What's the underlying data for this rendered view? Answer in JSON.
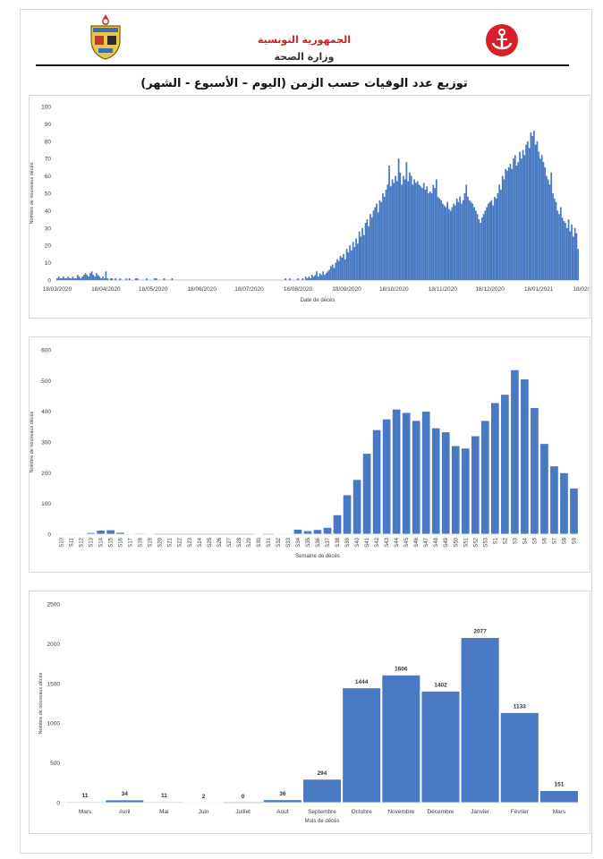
{
  "header": {
    "ministry_line1": "الجمهورية التونسية",
    "ministry_line2": "وزارة الصحة",
    "emblem_icon": "tunisia-coat-of-arms-icon",
    "logo_icon": "red-anchor-logo-icon",
    "title": "توزيع عدد الوفيات حسب الزمن (اليوم – الأسبوع - الشهر)"
  },
  "colors": {
    "bar": "#4a79c3",
    "axis": "#bfbfbf",
    "grid": "#e3e3e3",
    "text": "#404040"
  },
  "chart_data": [
    {
      "type": "bar",
      "subtype": "daily",
      "xlabel": "Date de décès",
      "ylabel": "Nombre de nouveaux décès",
      "ylim": [
        0,
        100
      ],
      "yticks": [
        0,
        10,
        20,
        30,
        40,
        50,
        60,
        70,
        80,
        90,
        100
      ],
      "xtick_labels": [
        "18/03/2020",
        "18/04/2020",
        "18/05/2020",
        "18/06/2020",
        "18/07/2020",
        "18/08/2020",
        "18/09/2020",
        "18/10/2020",
        "18/11/2020",
        "18/12/2020",
        "18/01/2021",
        "18/02/2021"
      ],
      "grid": false,
      "start_date": "2020-03-18",
      "values": [
        1,
        2,
        1,
        1,
        2,
        1,
        1,
        2,
        1,
        1,
        2,
        1,
        1,
        3,
        2,
        1,
        2,
        3,
        4,
        3,
        2,
        4,
        5,
        3,
        2,
        4,
        3,
        2,
        1,
        2,
        1,
        5,
        1,
        0,
        1,
        1,
        0,
        1,
        0,
        0,
        1,
        0,
        0,
        0,
        1,
        0,
        1,
        0,
        0,
        0,
        1,
        1,
        0,
        0,
        0,
        0,
        0,
        1,
        0,
        0,
        0,
        0,
        1,
        1,
        0,
        0,
        0,
        0,
        1,
        0,
        0,
        0,
        0,
        1,
        0,
        0,
        0,
        0,
        0,
        0,
        0,
        0,
        0,
        0,
        0,
        0,
        0,
        0,
        0,
        0,
        0,
        0,
        0,
        0,
        0,
        0,
        0,
        0,
        0,
        0,
        0,
        0,
        0,
        0,
        0,
        0,
        0,
        0,
        0,
        0,
        0,
        0,
        0,
        0,
        0,
        0,
        0,
        0,
        0,
        0,
        0,
        0,
        0,
        0,
        0,
        0,
        0,
        0,
        0,
        0,
        0,
        0,
        0,
        0,
        0,
        0,
        0,
        0,
        0,
        0,
        0,
        0,
        0,
        0,
        0,
        1,
        0,
        0,
        1,
        0,
        0,
        0,
        0,
        1,
        0,
        0,
        1,
        0,
        2,
        1,
        2,
        1,
        3,
        2,
        3,
        5,
        2,
        4,
        3,
        5,
        3,
        4,
        5,
        6,
        8,
        9,
        7,
        10,
        12,
        11,
        14,
        13,
        15,
        12,
        18,
        16,
        20,
        17,
        22,
        19,
        24,
        21,
        28,
        25,
        30,
        26,
        33,
        35,
        31,
        38,
        36,
        40,
        42,
        44,
        39,
        46,
        45,
        50,
        48,
        52,
        55,
        66,
        54,
        58,
        56,
        60,
        57,
        70,
        62,
        55,
        60,
        58,
        68,
        57,
        62,
        60,
        55,
        58,
        56,
        57,
        55,
        54,
        53,
        56,
        52,
        54,
        50,
        51,
        50,
        55,
        53,
        58,
        48,
        47,
        46,
        44,
        43,
        42,
        45,
        41,
        40,
        42,
        44,
        43,
        47,
        45,
        48,
        44,
        46,
        50,
        55,
        48,
        46,
        45,
        44,
        42,
        40,
        38,
        35,
        33,
        36,
        38,
        40,
        42,
        44,
        45,
        46,
        43,
        48,
        47,
        50,
        55,
        52,
        60,
        58,
        64,
        63,
        65,
        67,
        64,
        70,
        72,
        66,
        68,
        74,
        70,
        75,
        72,
        78,
        80,
        76,
        85,
        83,
        86,
        78,
        80,
        74,
        70,
        72,
        68,
        65,
        60,
        58,
        55,
        62,
        50,
        47,
        45,
        40,
        38,
        42,
        36,
        34,
        33,
        30,
        35,
        28,
        32,
        25,
        30,
        27,
        18
      ],
      "bar_color": "#4a79c3"
    },
    {
      "type": "bar",
      "subtype": "weekly",
      "xlabel": "Semaine de décès",
      "ylabel": "Nombre de nouveaux décès",
      "ylim": [
        0,
        600
      ],
      "yticks": [
        0,
        100,
        200,
        300,
        400,
        500,
        600
      ],
      "categories": [
        "S10",
        "S11",
        "S12",
        "S13",
        "S14",
        "S15",
        "S16",
        "S17",
        "S18",
        "S19",
        "S20",
        "S21",
        "S22",
        "S23",
        "S24",
        "S25",
        "S26",
        "S27",
        "S28",
        "S29",
        "S30",
        "S31",
        "S32",
        "S33",
        "S34",
        "S35",
        "S36",
        "S37",
        "S38",
        "S39",
        "S40",
        "S41",
        "S42",
        "S43",
        "S44",
        "S45",
        "S46",
        "S47",
        "S48",
        "S49",
        "S50",
        "S51",
        "S52",
        "S53",
        "S1",
        "S2",
        "S3",
        "S4",
        "S5",
        "S6",
        "S7",
        "S8",
        "S9"
      ],
      "values": [
        1,
        1,
        2,
        5,
        13,
        14,
        6,
        1,
        3,
        1,
        0,
        0,
        0,
        0,
        0,
        0,
        0,
        0,
        0,
        0,
        1,
        0,
        1,
        2,
        16,
        11,
        15,
        22,
        63,
        128,
        178,
        263,
        340,
        375,
        407,
        396,
        370,
        400,
        346,
        333,
        288,
        280,
        320,
        370,
        428,
        455,
        535,
        505,
        412,
        295,
        222,
        200,
        150
      ],
      "grid": false,
      "bar_color": "#4a79c3"
    },
    {
      "type": "bar",
      "subtype": "monthly",
      "xlabel": "Mois de décès",
      "ylabel": "Nombre de nouveaux décès",
      "ylim": [
        0,
        2500
      ],
      "yticks": [
        0,
        500,
        1000,
        1500,
        2000,
        2500
      ],
      "categories": [
        "Mars",
        "Avril",
        "Mai",
        "Juin",
        "Juillet",
        "Aout",
        "Septembre",
        "Octobre",
        "Novembre",
        "Décembre",
        "Janvier",
        "Février",
        "Mars"
      ],
      "values": [
        11,
        34,
        11,
        2,
        0,
        36,
        294,
        1444,
        1606,
        1402,
        2077,
        1133,
        151
      ],
      "data_labels": [
        "11",
        "34",
        "11",
        "2",
        "0",
        "36",
        "294",
        "1444",
        "1606",
        "1402",
        "2077",
        "1133",
        "151"
      ],
      "grid": false,
      "bar_color": "#4a79c3"
    }
  ]
}
